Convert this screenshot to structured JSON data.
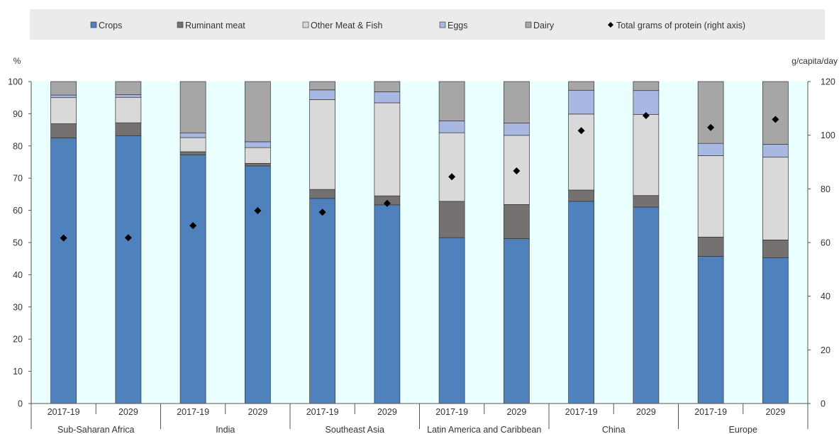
{
  "chart_data": {
    "type": "bar",
    "stacked": true,
    "y_unit_left": "%",
    "y_unit_right": "g/capita/day",
    "ylim_left": [
      0,
      100
    ],
    "yticks_left": [
      0,
      10,
      20,
      30,
      40,
      50,
      60,
      70,
      80,
      90,
      100
    ],
    "ylim_right": [
      0,
      120
    ],
    "yticks_right": [
      0,
      20,
      40,
      60,
      80,
      100,
      120
    ],
    "grid": false,
    "plot_background": "#eaffff",
    "legend_position": "top",
    "groups": [
      {
        "label": "Sub-Saharan Africa",
        "periods": [
          "2017-19",
          "2029"
        ]
      },
      {
        "label": "India",
        "periods": [
          "2017-19",
          "2029"
        ]
      },
      {
        "label": "Southeast Asia",
        "periods": [
          "2017-19",
          "2029"
        ]
      },
      {
        "label": "Latin America and Caribbean",
        "periods": [
          "2017-19",
          "2029"
        ]
      },
      {
        "label": "China",
        "periods": [
          "2017-19",
          "2029"
        ]
      },
      {
        "label": "Europe",
        "periods": [
          "2017-19",
          "2029"
        ]
      }
    ],
    "series": [
      {
        "name": "Crops",
        "color": "#4f81bd",
        "values": [
          82.5,
          83.2,
          77.2,
          73.8,
          63.7,
          61.7,
          51.5,
          51.2,
          62.8,
          61.0,
          45.7,
          45.3
        ]
      },
      {
        "name": "Ruminant meat",
        "color": "#767171",
        "values": [
          4.4,
          4.0,
          1.0,
          0.8,
          2.8,
          2.8,
          11.3,
          10.6,
          3.5,
          3.6,
          6.0,
          5.5
        ]
      },
      {
        "name": "Other Meat & Fish",
        "color": "#d9d9d9",
        "values": [
          8.1,
          7.9,
          4.4,
          4.9,
          27.9,
          28.9,
          21.3,
          21.5,
          23.6,
          25.2,
          25.3,
          25.7
        ]
      },
      {
        "name": "Eggs",
        "color": "#a9b8e3",
        "values": [
          0.8,
          0.8,
          1.4,
          1.8,
          3.0,
          3.4,
          3.7,
          3.8,
          7.4,
          7.4,
          3.8,
          4.0
        ]
      },
      {
        "name": "Dairy",
        "color": "#a6a6a6",
        "values": [
          4.2,
          4.1,
          16.0,
          18.7,
          2.6,
          3.2,
          12.2,
          12.9,
          2.7,
          2.8,
          19.2,
          19.5
        ]
      }
    ],
    "right_axis_series": {
      "name": "Total grams of protein (right axis)",
      "color": "#000000",
      "marker": "diamond",
      "values": [
        61.7,
        61.8,
        66.3,
        71.9,
        71.3,
        74.6,
        84.5,
        86.7,
        101.7,
        107.3,
        102.9,
        105.9
      ]
    }
  }
}
